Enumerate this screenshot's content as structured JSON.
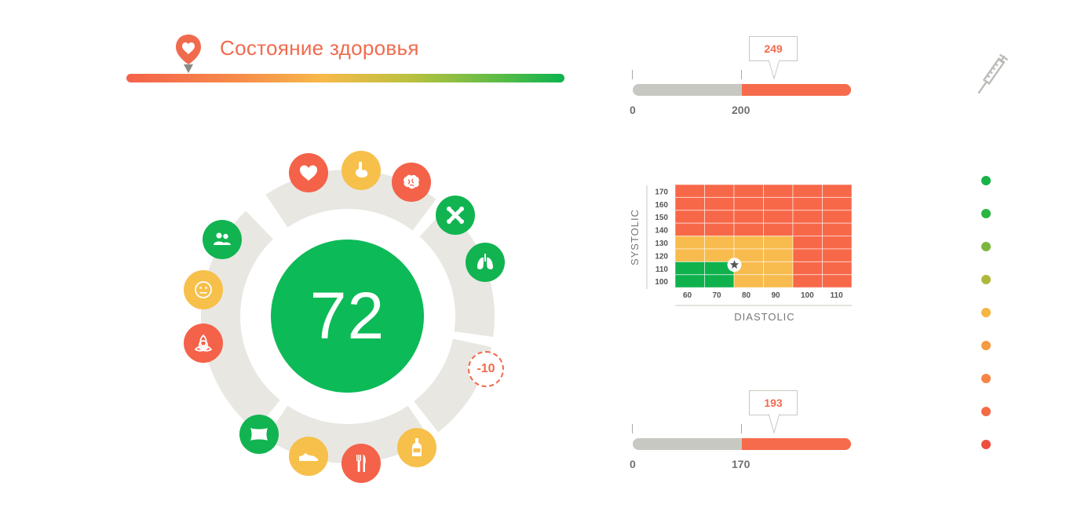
{
  "header": {
    "title": "Состояние здоровья",
    "pin_color": "#f06b4e",
    "gradient_marker": "heart-pin-icon"
  },
  "wheel": {
    "score": "72",
    "delta": "-10",
    "icons": [
      {
        "name": "heart-icon",
        "color": "red"
      },
      {
        "name": "stomach-icon",
        "color": "yellow"
      },
      {
        "name": "brain-icon",
        "color": "red"
      },
      {
        "name": "bone-icon",
        "color": "green"
      },
      {
        "name": "lungs-icon",
        "color": "green"
      },
      {
        "name": "bottle-icon",
        "color": "yellow"
      },
      {
        "name": "fork-knife-icon",
        "color": "red"
      },
      {
        "name": "sneaker-icon",
        "color": "yellow"
      },
      {
        "name": "pillow-icon",
        "color": "green"
      },
      {
        "name": "trinity-knot-icon",
        "color": "red"
      },
      {
        "name": "neutral-face-icon",
        "color": "yellow"
      },
      {
        "name": "people-icon",
        "color": "green"
      }
    ]
  },
  "metric_top": {
    "min_label": "0",
    "threshold_label": "200",
    "value_label": "249",
    "threshold": 200,
    "value": 249,
    "max": 400
  },
  "metric_bottom": {
    "min_label": "0",
    "threshold_label": "170",
    "value_label": "193",
    "threshold": 170,
    "value": 193,
    "max": 340
  },
  "bp_grid": {
    "ylabel": "SYSTOLIC",
    "xlabel": "DIASTOLIC",
    "y_ticks": [
      "170",
      "160",
      "150",
      "140",
      "130",
      "120",
      "110",
      "100"
    ],
    "x_ticks": [
      "60",
      "70",
      "80",
      "90",
      "100",
      "110"
    ],
    "marker": {
      "diastolic": 78,
      "systolic": 120
    },
    "colors": {
      "red": "#f76849",
      "yellow": "#f8bb4e",
      "green": "#0fb14d"
    }
  },
  "side": {
    "syringe_icon": "syringe-icon",
    "dots": [
      "#17b347",
      "#2bb544",
      "#7db63e",
      "#b0b83b",
      "#f5b642",
      "#f59a44",
      "#f58545",
      "#f46a45",
      "#ef4e3f"
    ]
  }
}
